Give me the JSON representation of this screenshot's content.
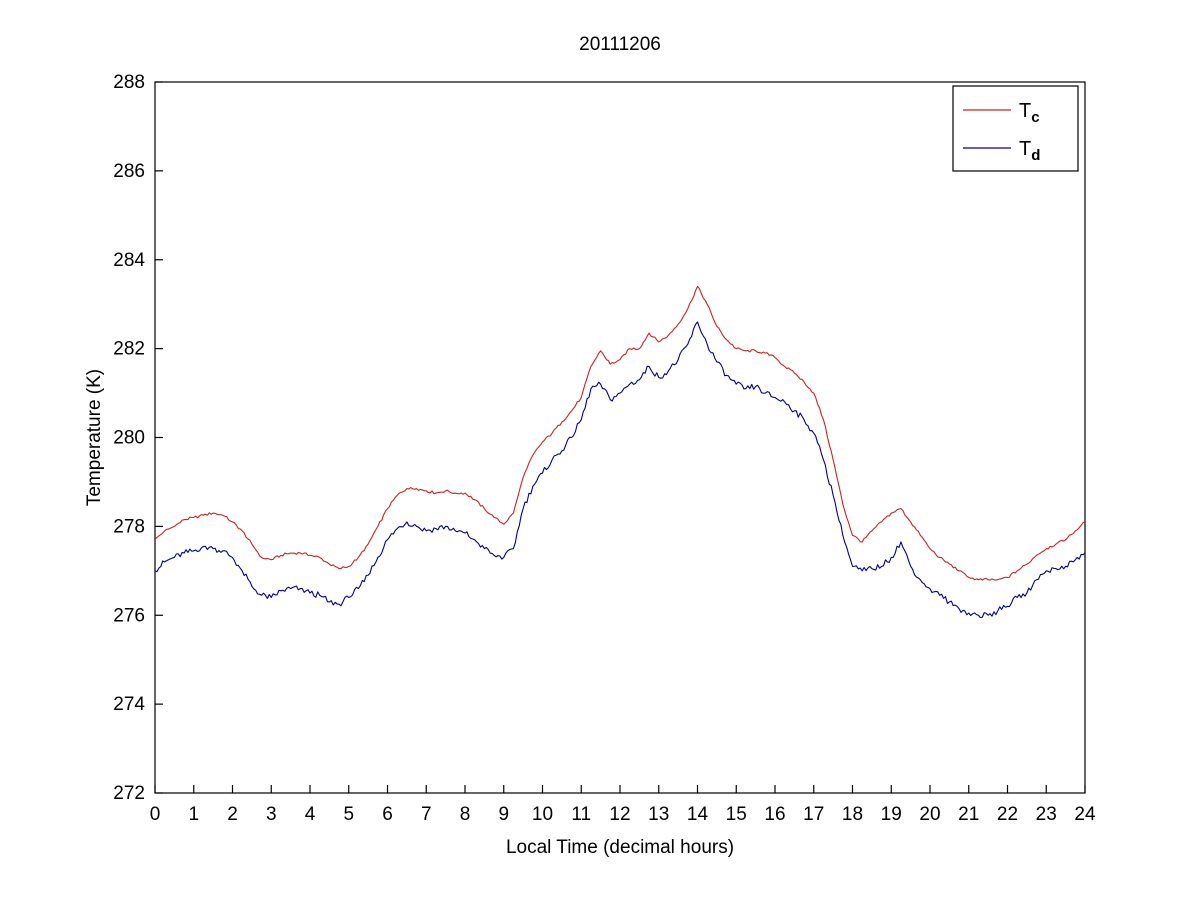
{
  "figure": {
    "title": "20111206"
  },
  "chart_data": {
    "type": "line",
    "title": "20111206",
    "xlabel": "Local Time (decimal hours)",
    "ylabel": "Temperature (K)",
    "xlim": [
      0,
      24
    ],
    "ylim": [
      272,
      288
    ],
    "xticks": [
      0,
      1,
      2,
      3,
      4,
      5,
      6,
      7,
      8,
      9,
      10,
      11,
      12,
      13,
      14,
      15,
      16,
      17,
      18,
      19,
      20,
      21,
      22,
      23,
      24
    ],
    "yticks": [
      272,
      274,
      276,
      278,
      280,
      282,
      284,
      286,
      288
    ],
    "grid": false,
    "legend_position": "top-right",
    "x_start": 0,
    "x_step": 0.25,
    "series": [
      {
        "name": "T_c",
        "label_main": "T",
        "label_sub": "c",
        "color": "#cc2222",
        "noise": 0.03,
        "values": [
          277.7,
          277.9,
          278.0,
          278.15,
          278.2,
          278.25,
          278.3,
          278.25,
          278.1,
          277.9,
          277.6,
          277.3,
          277.25,
          277.35,
          277.4,
          277.4,
          277.35,
          277.3,
          277.15,
          277.05,
          277.1,
          277.3,
          277.6,
          278.0,
          278.4,
          278.7,
          278.85,
          278.85,
          278.8,
          278.75,
          278.8,
          278.75,
          278.75,
          278.6,
          278.4,
          278.2,
          278.05,
          278.3,
          279.1,
          279.6,
          279.9,
          280.1,
          280.35,
          280.6,
          280.9,
          281.6,
          281.95,
          281.65,
          281.75,
          282.0,
          282.0,
          282.35,
          282.15,
          282.3,
          282.55,
          282.9,
          283.4,
          283.0,
          282.5,
          282.2,
          282.0,
          281.95,
          281.95,
          281.9,
          281.8,
          281.6,
          281.45,
          281.25,
          281.0,
          280.4,
          279.5,
          278.5,
          277.8,
          277.65,
          277.9,
          278.1,
          278.3,
          278.4,
          278.1,
          277.8,
          277.5,
          277.3,
          277.15,
          277.0,
          276.85,
          276.8,
          276.8,
          276.8,
          276.85,
          277.0,
          277.15,
          277.35,
          277.5,
          277.6,
          277.7,
          277.9,
          278.1
        ]
      },
      {
        "name": "T_d",
        "label_main": "T",
        "label_sub": "d",
        "color": "#000099",
        "noise": 0.07,
        "values": [
          277.0,
          277.2,
          277.3,
          277.4,
          277.45,
          277.55,
          277.5,
          277.45,
          277.3,
          277.0,
          276.65,
          276.45,
          276.4,
          276.55,
          276.6,
          276.6,
          276.5,
          276.45,
          276.3,
          276.25,
          276.4,
          276.6,
          276.9,
          277.3,
          277.7,
          277.95,
          278.1,
          278.0,
          277.9,
          277.95,
          278.0,
          277.9,
          277.85,
          277.7,
          277.5,
          277.35,
          277.3,
          277.5,
          278.4,
          278.9,
          279.2,
          279.5,
          279.7,
          280.0,
          280.4,
          281.1,
          281.2,
          280.85,
          281.0,
          281.2,
          281.3,
          281.6,
          281.35,
          281.5,
          281.75,
          282.1,
          282.6,
          282.1,
          281.7,
          281.4,
          281.2,
          281.1,
          281.15,
          281.0,
          280.9,
          280.8,
          280.6,
          280.4,
          280.1,
          279.5,
          278.7,
          277.8,
          277.1,
          277.0,
          277.05,
          277.1,
          277.3,
          277.65,
          277.1,
          276.8,
          276.6,
          276.45,
          276.3,
          276.15,
          276.05,
          276.0,
          276.0,
          276.1,
          276.2,
          276.4,
          276.5,
          276.8,
          277.0,
          277.05,
          277.1,
          277.25,
          277.4
        ]
      }
    ]
  }
}
